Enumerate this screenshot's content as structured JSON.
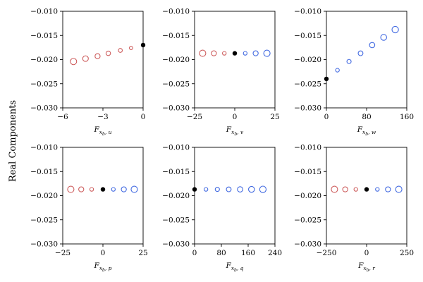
{
  "figure": {
    "ylabel": "Real Components"
  },
  "colors": {
    "negative": "#cd5c5c",
    "positive": "#4169e1",
    "baseline": "#000000"
  },
  "chart_data": [
    {
      "type": "scatter",
      "id": "u",
      "xlabel_main": "F",
      "xlabel_sub": "x",
      "xlabel_subsub": "b",
      "xlabel_tail": ", u",
      "xlim": [
        -6,
        0
      ],
      "ylim": [
        -0.03,
        -0.01
      ],
      "xticks": [
        -6,
        -3,
        0
      ],
      "xtick_labels": [
        "−6",
        "−3",
        "0"
      ],
      "yticks": [
        -0.03,
        -0.025,
        -0.02,
        -0.015,
        -0.01
      ],
      "ytick_labels": [
        "−0.030",
        "−0.025",
        "−0.020",
        "−0.015",
        "−0.010"
      ],
      "points": [
        {
          "x": -5.2,
          "y": -0.0204,
          "group": "negative",
          "size": 4.5
        },
        {
          "x": -4.3,
          "y": -0.0198,
          "group": "negative",
          "size": 4.0
        },
        {
          "x": -3.4,
          "y": -0.0193,
          "group": "negative",
          "size": 3.6
        },
        {
          "x": -2.6,
          "y": -0.0187,
          "group": "negative",
          "size": 3.2
        },
        {
          "x": -1.7,
          "y": -0.0181,
          "group": "negative",
          "size": 2.8
        },
        {
          "x": -0.9,
          "y": -0.0176,
          "group": "negative",
          "size": 2.4
        },
        {
          "x": 0.0,
          "y": -0.017,
          "group": "baseline",
          "size": 3.2
        }
      ]
    },
    {
      "type": "scatter",
      "id": "v",
      "xlabel_main": "F",
      "xlabel_sub": "x",
      "xlabel_subsub": "b",
      "xlabel_tail": ", v",
      "xlim": [
        -25,
        25
      ],
      "ylim": [
        -0.03,
        -0.01
      ],
      "xticks": [
        -25,
        0,
        25
      ],
      "xtick_labels": [
        "−25",
        "0",
        "25"
      ],
      "yticks": [
        -0.03,
        -0.025,
        -0.02,
        -0.015,
        -0.01
      ],
      "ytick_labels": [
        "−0.030",
        "−0.025",
        "−0.020",
        "−0.015",
        "−0.010"
      ],
      "points": [
        {
          "x": -20,
          "y": -0.0187,
          "group": "negative",
          "size": 4.5
        },
        {
          "x": -13,
          "y": -0.0187,
          "group": "negative",
          "size": 3.6
        },
        {
          "x": -6.5,
          "y": -0.0187,
          "group": "negative",
          "size": 2.6
        },
        {
          "x": 0,
          "y": -0.0187,
          "group": "baseline",
          "size": 3.2
        },
        {
          "x": 6.5,
          "y": -0.0187,
          "group": "positive",
          "size": 2.6
        },
        {
          "x": 13,
          "y": -0.0187,
          "group": "positive",
          "size": 3.6
        },
        {
          "x": 20,
          "y": -0.0187,
          "group": "positive",
          "size": 4.5
        }
      ]
    },
    {
      "type": "scatter",
      "id": "w",
      "xlabel_main": "F",
      "xlabel_sub": "x",
      "xlabel_subsub": "b",
      "xlabel_tail": ", w",
      "xlim": [
        0,
        160
      ],
      "ylim": [
        -0.03,
        -0.01
      ],
      "xticks": [
        0,
        80,
        160
      ],
      "xtick_labels": [
        "0",
        "80",
        "160"
      ],
      "yticks": [
        -0.03,
        -0.025,
        -0.02,
        -0.015,
        -0.01
      ],
      "ytick_labels": [
        "−0.030",
        "−0.025",
        "−0.020",
        "−0.015",
        "−0.010"
      ],
      "points": [
        {
          "x": 0,
          "y": -0.024,
          "group": "baseline",
          "size": 3.2
        },
        {
          "x": 22,
          "y": -0.0222,
          "group": "positive",
          "size": 2.6
        },
        {
          "x": 45,
          "y": -0.0204,
          "group": "positive",
          "size": 3.0
        },
        {
          "x": 68,
          "y": -0.0187,
          "group": "positive",
          "size": 3.4
        },
        {
          "x": 91,
          "y": -0.017,
          "group": "positive",
          "size": 3.8
        },
        {
          "x": 114,
          "y": -0.0154,
          "group": "positive",
          "size": 4.2
        },
        {
          "x": 137,
          "y": -0.0138,
          "group": "positive",
          "size": 4.6
        }
      ]
    },
    {
      "type": "scatter",
      "id": "p",
      "xlabel_main": "F",
      "xlabel_sub": "x",
      "xlabel_subsub": "b",
      "xlabel_tail": ", p",
      "xlim": [
        -25,
        25
      ],
      "ylim": [
        -0.03,
        -0.01
      ],
      "xticks": [
        -25,
        0,
        25
      ],
      "xtick_labels": [
        "−25",
        "0",
        "25"
      ],
      "yticks": [
        -0.03,
        -0.025,
        -0.02,
        -0.015,
        -0.01
      ],
      "ytick_labels": [
        "−0.030",
        "−0.025",
        "−0.020",
        "−0.015",
        "−0.010"
      ],
      "points": [
        {
          "x": -20,
          "y": -0.0187,
          "group": "negative",
          "size": 4.5
        },
        {
          "x": -13.5,
          "y": -0.0187,
          "group": "negative",
          "size": 3.6
        },
        {
          "x": -7,
          "y": -0.0187,
          "group": "negative",
          "size": 2.6
        },
        {
          "x": 0,
          "y": -0.0187,
          "group": "baseline",
          "size": 3.2
        },
        {
          "x": 6.5,
          "y": -0.0187,
          "group": "positive",
          "size": 2.6
        },
        {
          "x": 13,
          "y": -0.0187,
          "group": "positive",
          "size": 3.6
        },
        {
          "x": 19.5,
          "y": -0.0187,
          "group": "positive",
          "size": 4.5
        }
      ]
    },
    {
      "type": "scatter",
      "id": "q",
      "xlabel_main": "F",
      "xlabel_sub": "x",
      "xlabel_subsub": "b",
      "xlabel_tail": ", q",
      "xlim": [
        0,
        240
      ],
      "ylim": [
        -0.03,
        -0.01
      ],
      "xticks": [
        0,
        80,
        160,
        240
      ],
      "xtick_labels": [
        "0",
        "80",
        "160",
        "240"
      ],
      "yticks": [
        -0.03,
        -0.025,
        -0.02,
        -0.015,
        -0.01
      ],
      "ytick_labels": [
        "−0.030",
        "−0.025",
        "−0.020",
        "−0.015",
        "−0.010"
      ],
      "points": [
        {
          "x": 0,
          "y": -0.0187,
          "group": "baseline",
          "size": 3.2
        },
        {
          "x": 34,
          "y": -0.0187,
          "group": "positive",
          "size": 2.6
        },
        {
          "x": 68,
          "y": -0.0187,
          "group": "positive",
          "size": 3.0
        },
        {
          "x": 102,
          "y": -0.0187,
          "group": "positive",
          "size": 3.4
        },
        {
          "x": 136,
          "y": -0.0187,
          "group": "positive",
          "size": 3.8
        },
        {
          "x": 170,
          "y": -0.0187,
          "group": "positive",
          "size": 4.2
        },
        {
          "x": 204,
          "y": -0.0187,
          "group": "positive",
          "size": 4.6
        }
      ]
    },
    {
      "type": "scatter",
      "id": "r",
      "xlabel_main": "F",
      "xlabel_sub": "x",
      "xlabel_subsub": "b",
      "xlabel_tail": ", r",
      "xlim": [
        -250,
        250
      ],
      "ylim": [
        -0.03,
        -0.01
      ],
      "xticks": [
        -250,
        0,
        250
      ],
      "xtick_labels": [
        "−250",
        "0",
        "250"
      ],
      "yticks": [
        -0.03,
        -0.025,
        -0.02,
        -0.015,
        -0.01
      ],
      "ytick_labels": [
        "−0.030",
        "−0.025",
        "−0.020",
        "−0.015",
        "−0.010"
      ],
      "points": [
        {
          "x": -200,
          "y": -0.0187,
          "group": "negative",
          "size": 4.5
        },
        {
          "x": -133,
          "y": -0.0187,
          "group": "negative",
          "size": 3.6
        },
        {
          "x": -67,
          "y": -0.0187,
          "group": "negative",
          "size": 2.6
        },
        {
          "x": 0,
          "y": -0.0187,
          "group": "baseline",
          "size": 3.2
        },
        {
          "x": 67,
          "y": -0.0187,
          "group": "positive",
          "size": 2.6
        },
        {
          "x": 133,
          "y": -0.0187,
          "group": "positive",
          "size": 3.6
        },
        {
          "x": 200,
          "y": -0.0187,
          "group": "positive",
          "size": 4.5
        }
      ]
    }
  ]
}
